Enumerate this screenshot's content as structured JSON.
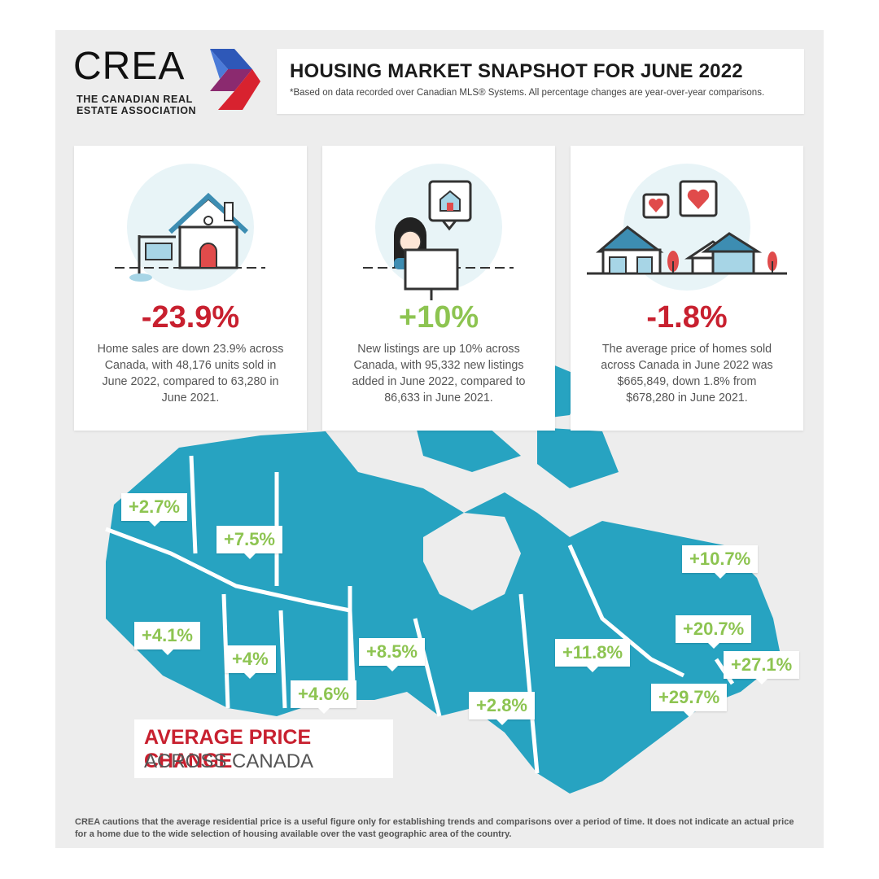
{
  "logo": {
    "wordmark": "CREA",
    "subtitle": "THE CANADIAN REAL ESTATE ASSOCIATION"
  },
  "header": {
    "title": "HOUSING MARKET SNAPSHOT FOR JUNE 2022",
    "note": "*Based on data recorded over Canadian MLS® Systems. All percentage changes are year-over-year comparisons."
  },
  "cards": [
    {
      "stat": "-23.9%",
      "description": "Home sales are down 23.9% across Canada, with 48,176 units sold in June 2022, compared to 63,280 in June 2021.",
      "icon": "house-sign-icon",
      "stat_color": "#c8202f"
    },
    {
      "stat": "+10%",
      "description": "New listings are up 10% across Canada, with 95,332 new listings added in June 2022, compared to 86,633 in June 2021.",
      "icon": "person-computer-icon",
      "stat_color": "#8dc451"
    },
    {
      "stat": "-1.8%",
      "description": "The average price of homes sold across Canada in June 2022 was $665,849, down 1.8% from $678,280 in June 2021.",
      "icon": "houses-hearts-icon",
      "stat_color": "#c8202f"
    }
  ],
  "map": {
    "title_line1": "AVERAGE PRICE CHANGE",
    "title_line2": "ACROSS CANADA",
    "labels": [
      "+2.7%",
      "+7.5%",
      "+4.1%",
      "+4%",
      "+4.6%",
      "+8.5%",
      "+2.8%",
      "+11.8%",
      "+10.7%",
      "+20.7%",
      "+27.1%",
      "+29.7%"
    ],
    "map_color": "#27a3c1"
  },
  "footnote": "CREA cautions that the average residential price is a useful figure only for establishing trends and comparisons over a period of time. It does not indicate an actual price for a home due to the wide selection of housing available over the vast geographic area of the country."
}
